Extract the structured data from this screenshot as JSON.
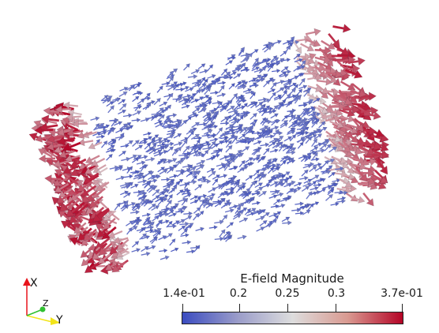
{
  "scene": {
    "title": "E-field Magnitude",
    "color_map": {
      "low": "#3b4cc0",
      "mid": "#dddddd",
      "high": "#b40426"
    },
    "colorbar_ticks": [
      "1.4e-01",
      "0.2",
      "0.25",
      "0.3",
      "3.7e-01"
    ],
    "colorbar_tick_values": [
      0.14,
      0.2,
      0.25,
      0.3,
      0.37
    ],
    "range": [
      0.14,
      0.37
    ]
  },
  "orientation_axes": {
    "x_label": "X",
    "y_label": "Y",
    "z_label": "Z",
    "x_color": "#e8141b",
    "y_color": "#f2e419",
    "z_color": "#30c030"
  }
}
